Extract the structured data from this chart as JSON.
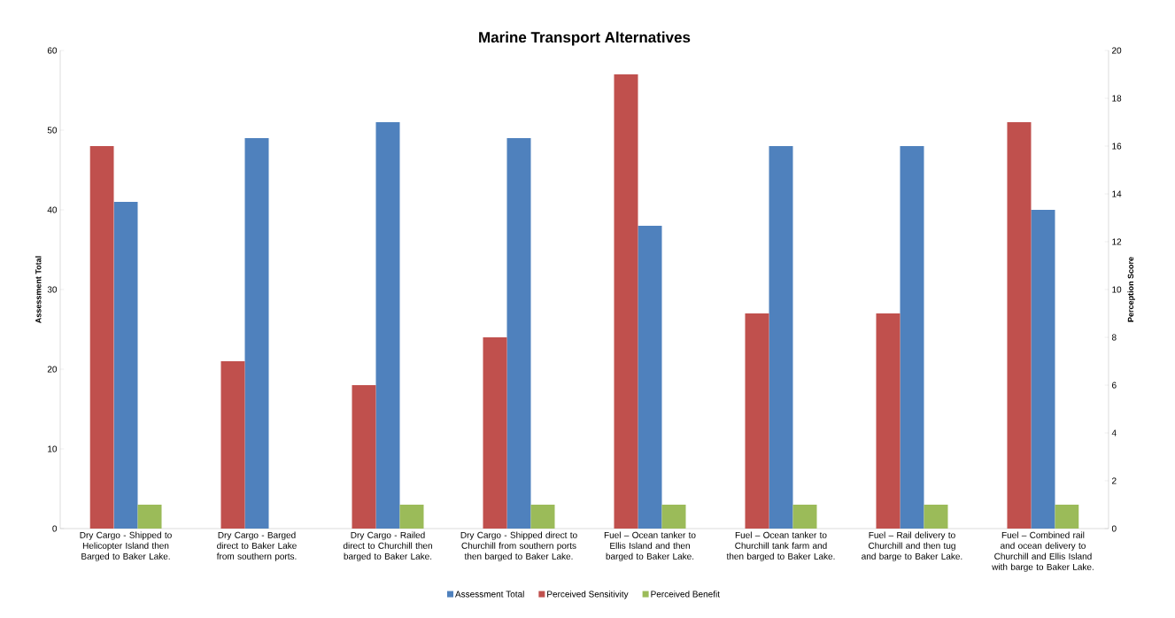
{
  "chart_data": {
    "type": "bar",
    "title": "Marine Transport Alternatives",
    "categories": [
      "Dry Cargo - Shipped to Helicopter Island then Barged to Baker Lake.",
      "Dry Cargo - Barged direct to Baker Lake from southern ports.",
      "Dry Cargo - Railed direct to Churchill then barged to Baker Lake.",
      "Dry Cargo - Shipped direct to Churchill from southern ports then barged to Baker Lake.",
      "Fuel – Ocean tanker to Ellis Island and then barged to Baker Lake.",
      "Fuel – Ocean tanker to Churchill tank farm and then barged to Baker Lake.",
      "Fuel – Rail delivery to Churchill and then tug and barge to Baker Lake.",
      "Fuel – Combined rail and ocean delivery to Churchill and Ellis Island with barge to Baker Lake."
    ],
    "series": [
      {
        "name": "Assessment Total",
        "color": "#4f81bd",
        "values": [
          41,
          49,
          51,
          49,
          38,
          48,
          48,
          40
        ]
      },
      {
        "name": "Perceived Sensitivity",
        "color": "#c0504d",
        "axis": "y2",
        "values": [
          16,
          7,
          6,
          8,
          19,
          9,
          9,
          17
        ]
      },
      {
        "name": "Perceived Benefit",
        "color": "#9bbb59",
        "axis": "y2",
        "values": [
          1,
          null,
          1,
          1,
          1,
          1,
          1,
          1
        ]
      }
    ],
    "ylabel": "Assessment Total",
    "y2label": "Perception Score",
    "ylim": [
      0,
      60
    ],
    "yticks": [
      0,
      10,
      20,
      30,
      40,
      50,
      60
    ],
    "y2lim": [
      0,
      20
    ],
    "y2ticks": [
      0,
      2,
      4,
      6,
      8,
      10,
      12,
      14,
      16,
      18,
      20
    ],
    "grid": false,
    "legend": "bottom"
  }
}
